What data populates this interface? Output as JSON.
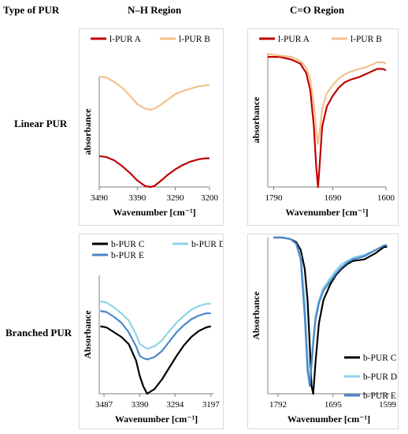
{
  "headers": {
    "type_label": "Type of PUR",
    "nh_label": "N–H Region",
    "co_label": "C=O Region"
  },
  "rows": {
    "linear_label": "Linear PUR",
    "branched_label": "Branched PUR"
  },
  "chart_data": [
    {
      "id": "linear_nh",
      "type": "line",
      "xlabel": "Wavenumber [cm⁻¹]",
      "ylabel": "absorbance",
      "x_reversed": true,
      "xlim": [
        3490,
        3200
      ],
      "ylim": [
        0,
        1
      ],
      "xticks": [
        3490,
        3390,
        3290,
        3200
      ],
      "y_axis_ticks_shown": false,
      "grid": false,
      "legend_position": "top",
      "series": [
        {
          "name": "l-PUR A",
          "color": "#c00000",
          "x": [
            3490,
            3470,
            3450,
            3430,
            3410,
            3390,
            3370,
            3355,
            3345,
            3330,
            3310,
            3290,
            3270,
            3250,
            3230,
            3210,
            3200
          ],
          "y": [
            0.28,
            0.27,
            0.24,
            0.19,
            0.13,
            0.06,
            0.01,
            0.0,
            0.01,
            0.05,
            0.11,
            0.16,
            0.2,
            0.23,
            0.25,
            0.26,
            0.26
          ]
        },
        {
          "name": "l-PUR B",
          "color": "#f5c18b",
          "x": [
            3490,
            3470,
            3450,
            3430,
            3410,
            3390,
            3370,
            3355,
            3345,
            3330,
            3310,
            3290,
            3270,
            3250,
            3230,
            3210,
            3200
          ],
          "y": [
            1.0,
            0.99,
            0.95,
            0.9,
            0.83,
            0.75,
            0.71,
            0.7,
            0.71,
            0.74,
            0.79,
            0.84,
            0.87,
            0.89,
            0.91,
            0.92,
            0.92
          ]
        }
      ]
    },
    {
      "id": "linear_co",
      "type": "line",
      "xlabel": "Wavenumber [cm⁻¹]",
      "ylabel": "absorbance",
      "x_reversed": true,
      "xlim": [
        1800,
        1600
      ],
      "ylim": [
        0,
        1
      ],
      "xticks": [
        1790,
        1690,
        1600
      ],
      "y_axis_ticks_shown": false,
      "grid": false,
      "legend_position": "top",
      "series": [
        {
          "name": "l-PUR A",
          "color": "#c00000",
          "x": [
            1800,
            1780,
            1760,
            1745,
            1735,
            1728,
            1722,
            1718,
            1715,
            1712,
            1708,
            1700,
            1690,
            1680,
            1670,
            1660,
            1645,
            1630,
            1615,
            1605,
            1600
          ],
          "y": [
            0.97,
            0.97,
            0.95,
            0.92,
            0.85,
            0.72,
            0.45,
            0.15,
            0.0,
            0.18,
            0.45,
            0.6,
            0.68,
            0.74,
            0.78,
            0.8,
            0.82,
            0.85,
            0.88,
            0.88,
            0.87
          ]
        },
        {
          "name": "l-PUR B",
          "color": "#f5c18b",
          "x": [
            1800,
            1780,
            1760,
            1745,
            1735,
            1728,
            1722,
            1718,
            1715,
            1712,
            1708,
            1700,
            1690,
            1680,
            1670,
            1660,
            1645,
            1630,
            1615,
            1605,
            1600
          ],
          "y": [
            0.99,
            0.98,
            0.97,
            0.94,
            0.89,
            0.8,
            0.62,
            0.42,
            0.32,
            0.42,
            0.58,
            0.7,
            0.76,
            0.81,
            0.84,
            0.86,
            0.88,
            0.9,
            0.93,
            0.93,
            0.92
          ]
        }
      ]
    },
    {
      "id": "branched_nh",
      "type": "line",
      "xlabel": "Wavenumber [cm⁻¹]",
      "ylabel": "Absorbance",
      "x_reversed": true,
      "xlim": [
        3500,
        3190
      ],
      "ylim": [
        0,
        1
      ],
      "xticks": [
        3487,
        3390,
        3294,
        3197
      ],
      "y_axis_ticks_shown": false,
      "grid": false,
      "legend_position": "top",
      "series": [
        {
          "name": "b-PUR C",
          "color": "#000000",
          "x": [
            3497,
            3480,
            3460,
            3440,
            3420,
            3400,
            3390,
            3380,
            3370,
            3350,
            3330,
            3310,
            3290,
            3270,
            3250,
            3230,
            3210,
            3197
          ],
          "y": [
            0.57,
            0.56,
            0.52,
            0.48,
            0.42,
            0.28,
            0.15,
            0.06,
            0.0,
            0.04,
            0.12,
            0.22,
            0.32,
            0.41,
            0.48,
            0.53,
            0.56,
            0.57
          ]
        },
        {
          "name": "b-PUR D",
          "color": "#8fd3e6",
          "x": [
            3497,
            3480,
            3460,
            3440,
            3420,
            3400,
            3390,
            3380,
            3370,
            3350,
            3330,
            3310,
            3290,
            3270,
            3250,
            3230,
            3210,
            3197
          ],
          "y": [
            0.78,
            0.77,
            0.73,
            0.68,
            0.62,
            0.5,
            0.42,
            0.4,
            0.38,
            0.4,
            0.45,
            0.53,
            0.6,
            0.66,
            0.71,
            0.74,
            0.76,
            0.76
          ]
        },
        {
          "name": "b-PUR E",
          "color": "#4a86c8",
          "x": [
            3497,
            3480,
            3460,
            3440,
            3420,
            3400,
            3390,
            3380,
            3370,
            3350,
            3330,
            3310,
            3290,
            3270,
            3250,
            3230,
            3210,
            3197
          ],
          "y": [
            0.7,
            0.69,
            0.65,
            0.6,
            0.52,
            0.4,
            0.32,
            0.3,
            0.29,
            0.31,
            0.36,
            0.44,
            0.52,
            0.58,
            0.63,
            0.66,
            0.68,
            0.68
          ]
        }
      ]
    },
    {
      "id": "branched_co",
      "type": "line",
      "xlabel": "Wavenumber [cm⁻¹]",
      "ylabel": "Absorbance",
      "x_reversed": true,
      "xlim": [
        1810,
        1595
      ],
      "ylim": [
        0,
        1
      ],
      "xticks": [
        1792,
        1695,
        1599
      ],
      "y_axis_ticks_shown": false,
      "grid": false,
      "legend_position": "bottom-right",
      "series": [
        {
          "name": "b-PUR C",
          "color": "#000000",
          "x": [
            1800,
            1785,
            1770,
            1760,
            1752,
            1745,
            1740,
            1736,
            1733,
            1730,
            1726,
            1720,
            1712,
            1700,
            1690,
            1680,
            1670,
            1660,
            1640,
            1620,
            1605,
            1600
          ],
          "y": [
            1.0,
            1.0,
            0.99,
            0.97,
            0.92,
            0.8,
            0.6,
            0.3,
            0.05,
            0.0,
            0.2,
            0.45,
            0.6,
            0.7,
            0.76,
            0.8,
            0.83,
            0.85,
            0.86,
            0.9,
            0.94,
            0.94
          ]
        },
        {
          "name": "b-PUR D",
          "color": "#8fd3e6",
          "x": [
            1800,
            1785,
            1770,
            1760,
            1752,
            1745,
            1740,
            1736,
            1733,
            1730,
            1726,
            1720,
            1712,
            1700,
            1690,
            1680,
            1670,
            1660,
            1640,
            1620,
            1605,
            1600
          ],
          "y": [
            1.0,
            1.0,
            0.99,
            0.96,
            0.88,
            0.6,
            0.25,
            0.1,
            0.2,
            0.35,
            0.5,
            0.6,
            0.68,
            0.74,
            0.79,
            0.83,
            0.85,
            0.87,
            0.89,
            0.92,
            0.95,
            0.95
          ]
        },
        {
          "name": "b-PUR E",
          "color": "#4a86c8",
          "x": [
            1800,
            1785,
            1770,
            1760,
            1752,
            1745,
            1740,
            1736,
            1733,
            1730,
            1726,
            1720,
            1712,
            1700,
            1690,
            1680,
            1670,
            1660,
            1640,
            1620,
            1605,
            1600
          ],
          "y": [
            1.0,
            1.0,
            0.99,
            0.96,
            0.86,
            0.5,
            0.15,
            0.05,
            0.18,
            0.32,
            0.47,
            0.58,
            0.66,
            0.72,
            0.77,
            0.81,
            0.84,
            0.86,
            0.88,
            0.92,
            0.95,
            0.95
          ]
        }
      ]
    }
  ]
}
